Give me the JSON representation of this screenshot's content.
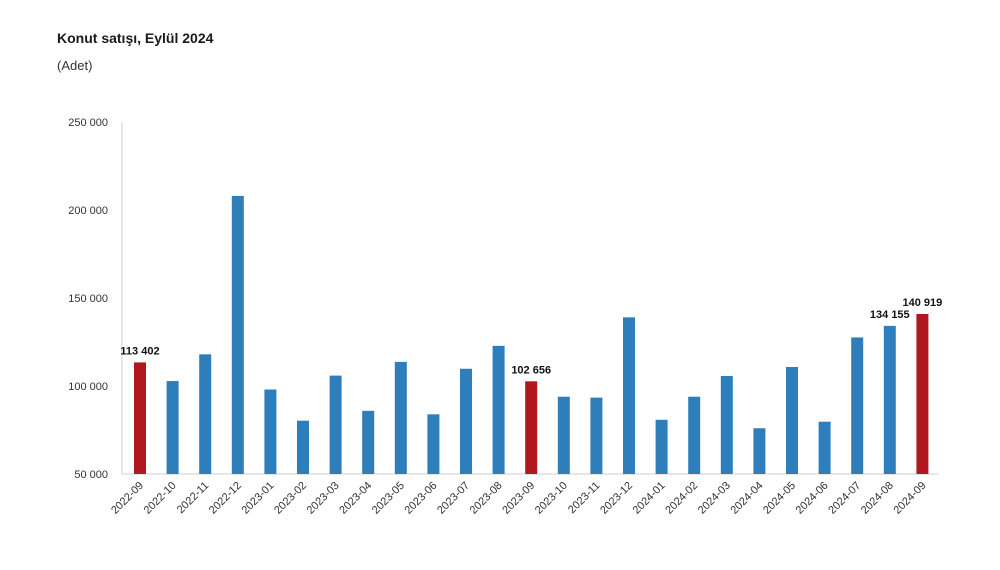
{
  "header": {
    "title": "Konut satışı, Eylül 2024",
    "subtitle": "(Adet)"
  },
  "colors": {
    "bar": "#2e7ebc",
    "highlight": "#b0171f",
    "axis": "#cfcfcf"
  },
  "chart_data": {
    "type": "bar",
    "title": "Konut satışı, Eylül 2024",
    "subtitle": "(Adet)",
    "xlabel": "",
    "ylabel": "",
    "ylim": [
      50000,
      250000
    ],
    "yticks": [
      50000,
      100000,
      150000,
      200000,
      250000
    ],
    "ytick_labels": [
      "50 000",
      "100 000",
      "150 000",
      "200 000",
      "250 000"
    ],
    "grid": false,
    "categories": [
      "2022-09",
      "2022-10",
      "2022-11",
      "2022-12",
      "2023-01",
      "2023-02",
      "2023-03",
      "2023-04",
      "2023-05",
      "2023-06",
      "2023-07",
      "2023-08",
      "2023-09",
      "2023-10",
      "2023-11",
      "2023-12",
      "2024-01",
      "2024-02",
      "2024-03",
      "2024-04",
      "2024-05",
      "2024-06",
      "2024-07",
      "2024-08",
      "2024-09"
    ],
    "values": [
      113402,
      102800,
      118000,
      208000,
      98000,
      80300,
      105900,
      85900,
      113700,
      83900,
      109800,
      122800,
      102656,
      93900,
      93400,
      139000,
      80800,
      93900,
      105700,
      76000,
      110800,
      79700,
      127600,
      134155,
      140919
    ],
    "highlighted": [
      "2022-09",
      "2023-09",
      "2024-09"
    ],
    "data_labels": [
      {
        "category": "2022-09",
        "text": "113 402"
      },
      {
        "category": "2023-09",
        "text": "102 656"
      },
      {
        "category": "2024-08",
        "text": "134 155"
      },
      {
        "category": "2024-09",
        "text": "140 919"
      }
    ]
  }
}
